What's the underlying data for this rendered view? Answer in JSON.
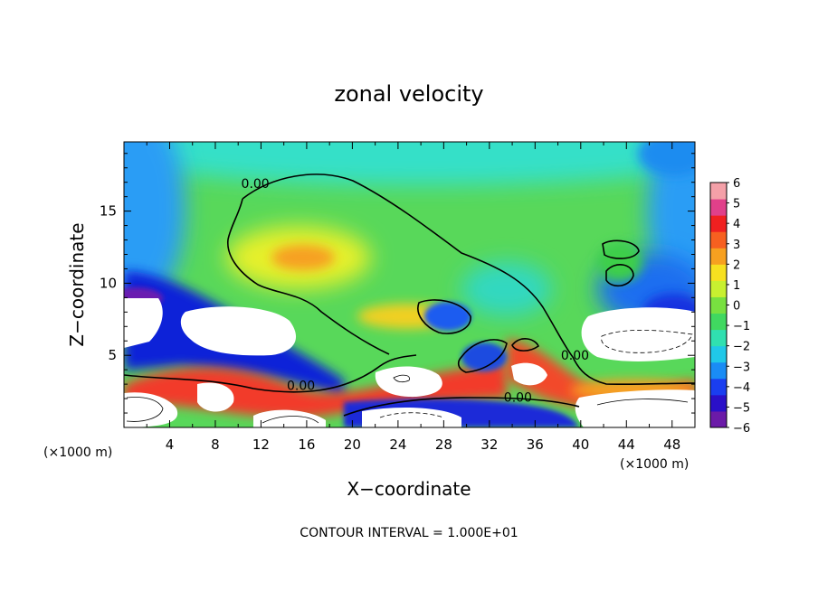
{
  "chart_data": {
    "type": "heatmap",
    "title": "zonal velocity",
    "xlabel": "X−coordinate",
    "ylabel": "Z−coordinate",
    "x_units_left": "(×1000 m)",
    "x_units_right": "(×1000 m)",
    "xlim": [
      0,
      50
    ],
    "ylim": [
      0,
      19.8
    ],
    "x_ticks": [
      4,
      8,
      12,
      16,
      20,
      24,
      28,
      32,
      36,
      40,
      44,
      48
    ],
    "y_ticks": [
      5,
      10,
      15
    ],
    "colorbar": {
      "range": [
        -6,
        6
      ],
      "ticks": [
        6,
        5,
        4,
        3,
        2,
        1,
        0,
        -1,
        -2,
        -3,
        -4,
        -5,
        -6
      ],
      "tick_labels": [
        "6",
        "5",
        "4",
        "3",
        "2",
        "1",
        "0",
        "−1",
        "−2",
        "−3",
        "−4",
        "−5",
        "−6"
      ]
    },
    "contour_labels": [
      {
        "text": "0.00",
        "x": 11.5,
        "y": 16.6
      },
      {
        "text": "0.00",
        "x": 15.5,
        "y": 2.6
      },
      {
        "text": "0.00",
        "x": 34.5,
        "y": 1.8
      },
      {
        "text": "0.00",
        "x": 39.5,
        "y": 4.7
      }
    ],
    "grid": false,
    "legend": "colorbar-right"
  },
  "footer": {
    "contour_interval": "CONTOUR INTERVAL = 1.000E+01"
  }
}
